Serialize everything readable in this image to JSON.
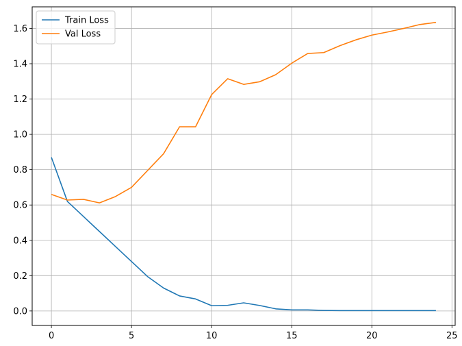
{
  "chart_data": {
    "type": "line",
    "title": "",
    "xlabel": "",
    "ylabel": "",
    "xlim": [
      -1.2,
      25.2
    ],
    "ylim": [
      -0.082,
      1.722
    ],
    "xticks": [
      0,
      5,
      10,
      15,
      20,
      25
    ],
    "yticks": [
      0.0,
      0.2,
      0.4,
      0.6,
      0.8,
      1.0,
      1.2,
      1.4,
      1.6
    ],
    "grid": true,
    "legend_position": "top-left",
    "x": [
      0,
      1,
      2,
      3,
      4,
      5,
      6,
      7,
      8,
      9,
      10,
      11,
      12,
      13,
      14,
      15,
      16,
      17,
      18,
      19,
      20,
      21,
      22,
      23,
      24
    ],
    "series": [
      {
        "name": "Train Loss",
        "color": "#1f77b4",
        "values": [
          0.87,
          0.62,
          0.535,
          0.45,
          0.365,
          0.28,
          0.195,
          0.13,
          0.085,
          0.068,
          0.03,
          0.032,
          0.046,
          0.031,
          0.012,
          0.006,
          0.006,
          0.003,
          0.002,
          0.002,
          0.002,
          0.002,
          0.002,
          0.002,
          0.002
        ]
      },
      {
        "name": "Val Loss",
        "color": "#ff7f0e",
        "values": [
          0.66,
          0.628,
          0.632,
          0.612,
          0.648,
          0.7,
          0.795,
          0.89,
          1.043,
          1.043,
          1.225,
          1.315,
          1.283,
          1.298,
          1.338,
          1.403,
          1.458,
          1.463,
          1.502,
          1.535,
          1.562,
          1.58,
          1.6,
          1.622,
          1.634
        ]
      }
    ]
  }
}
